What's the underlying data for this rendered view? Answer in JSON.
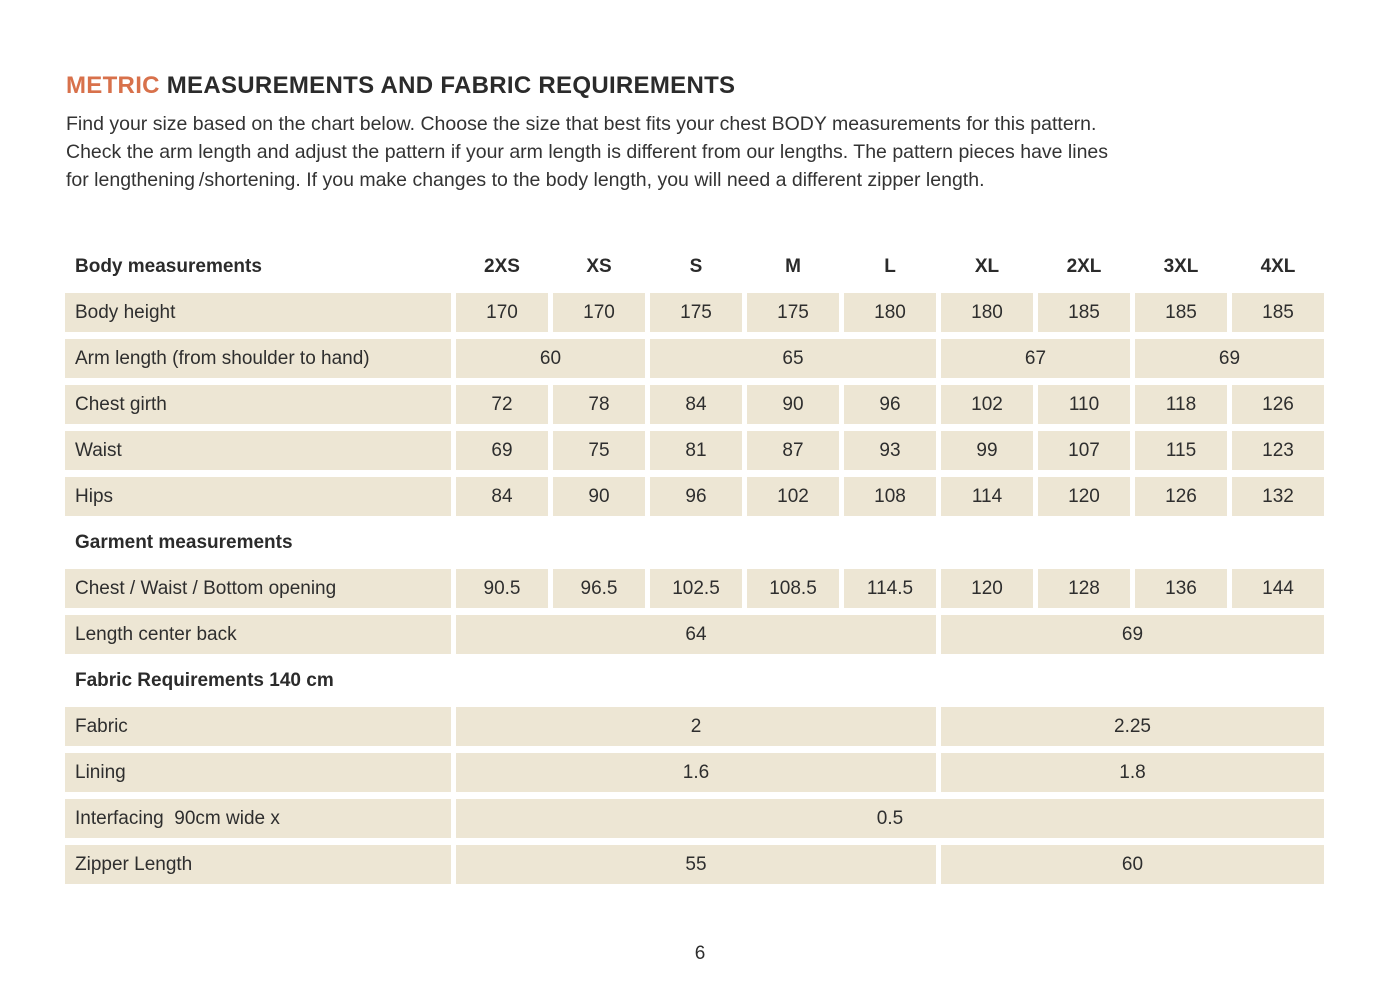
{
  "colors": {
    "accent": "#D8714B",
    "cell_background": "#EDE6D4",
    "text": "#2E2E2E"
  },
  "header": {
    "title_accent": "METRIC",
    "title_rest": " MEASUREMENTS AND FABRIC REQUIREMENTS",
    "intro_lines": [
      "Find your size based on the chart below. Choose the size that best fits your chest BODY measurements for this pattern.",
      "Check the arm length and adjust the pattern if your arm length is different from our lengths. The pattern pieces have lines",
      "for lengthening /shortening. If you make changes to the body length, you will need a different zipper length."
    ]
  },
  "table": {
    "corner_label": "Body measurements",
    "size_headers": [
      "2XS",
      "XS",
      "S",
      "M",
      "L",
      "XL",
      "2XL",
      "3XL",
      "4XL"
    ],
    "rows": [
      {
        "type": "data",
        "label": "Body height",
        "cells": [
          {
            "v": "170",
            "span": 1
          },
          {
            "v": "170",
            "span": 1
          },
          {
            "v": "175",
            "span": 1
          },
          {
            "v": "175",
            "span": 1
          },
          {
            "v": "180",
            "span": 1
          },
          {
            "v": "180",
            "span": 1
          },
          {
            "v": "185",
            "span": 1
          },
          {
            "v": "185",
            "span": 1
          },
          {
            "v": "185",
            "span": 1
          }
        ]
      },
      {
        "type": "data",
        "label": "Arm length (from shoulder to hand)",
        "cells": [
          {
            "v": "60",
            "span": 2
          },
          {
            "v": "65",
            "span": 3
          },
          {
            "v": "67",
            "span": 2
          },
          {
            "v": "69",
            "span": 2
          }
        ]
      },
      {
        "type": "data",
        "label": "Chest girth",
        "cells": [
          {
            "v": "72",
            "span": 1
          },
          {
            "v": "78",
            "span": 1
          },
          {
            "v": "84",
            "span": 1
          },
          {
            "v": "90",
            "span": 1
          },
          {
            "v": "96",
            "span": 1
          },
          {
            "v": "102",
            "span": 1
          },
          {
            "v": "110",
            "span": 1
          },
          {
            "v": "118",
            "span": 1
          },
          {
            "v": "126",
            "span": 1
          }
        ]
      },
      {
        "type": "data",
        "label": "Waist",
        "cells": [
          {
            "v": "69",
            "span": 1
          },
          {
            "v": "75",
            "span": 1
          },
          {
            "v": "81",
            "span": 1
          },
          {
            "v": "87",
            "span": 1
          },
          {
            "v": "93",
            "span": 1
          },
          {
            "v": "99",
            "span": 1
          },
          {
            "v": "107",
            "span": 1
          },
          {
            "v": "115",
            "span": 1
          },
          {
            "v": "123",
            "span": 1
          }
        ]
      },
      {
        "type": "data",
        "label": "Hips",
        "cells": [
          {
            "v": "84",
            "span": 1
          },
          {
            "v": "90",
            "span": 1
          },
          {
            "v": "96",
            "span": 1
          },
          {
            "v": "102",
            "span": 1
          },
          {
            "v": "108",
            "span": 1
          },
          {
            "v": "114",
            "span": 1
          },
          {
            "v": "120",
            "span": 1
          },
          {
            "v": "126",
            "span": 1
          },
          {
            "v": "132",
            "span": 1
          }
        ]
      },
      {
        "type": "section",
        "label": "Garment measurements"
      },
      {
        "type": "data",
        "label": "Chest / Waist / Bottom opening",
        "cells": [
          {
            "v": "90.5",
            "span": 1
          },
          {
            "v": "96.5",
            "span": 1
          },
          {
            "v": "102.5",
            "span": 1
          },
          {
            "v": "108.5",
            "span": 1
          },
          {
            "v": "114.5",
            "span": 1
          },
          {
            "v": "120",
            "span": 1
          },
          {
            "v": "128",
            "span": 1
          },
          {
            "v": "136",
            "span": 1
          },
          {
            "v": "144",
            "span": 1
          }
        ]
      },
      {
        "type": "data",
        "label": "Length center back",
        "cells": [
          {
            "v": "64",
            "span": 5
          },
          {
            "v": "69",
            "span": 4
          }
        ]
      },
      {
        "type": "section",
        "label": "Fabric Requirements 140 cm"
      },
      {
        "type": "data",
        "label": "Fabric",
        "cells": [
          {
            "v": "2",
            "span": 5
          },
          {
            "v": "2.25",
            "span": 4
          }
        ]
      },
      {
        "type": "data",
        "label": "Lining",
        "cells": [
          {
            "v": "1.6",
            "span": 5
          },
          {
            "v": "1.8",
            "span": 4
          }
        ]
      },
      {
        "type": "data",
        "label": "Interfacing  90cm wide x",
        "cells": [
          {
            "v": "0.5",
            "span": 9
          }
        ]
      },
      {
        "type": "data",
        "label": "Zipper Length",
        "cells": [
          {
            "v": "55",
            "span": 5
          },
          {
            "v": "60",
            "span": 4
          }
        ]
      }
    ]
  },
  "footer": {
    "page_number": "6"
  }
}
